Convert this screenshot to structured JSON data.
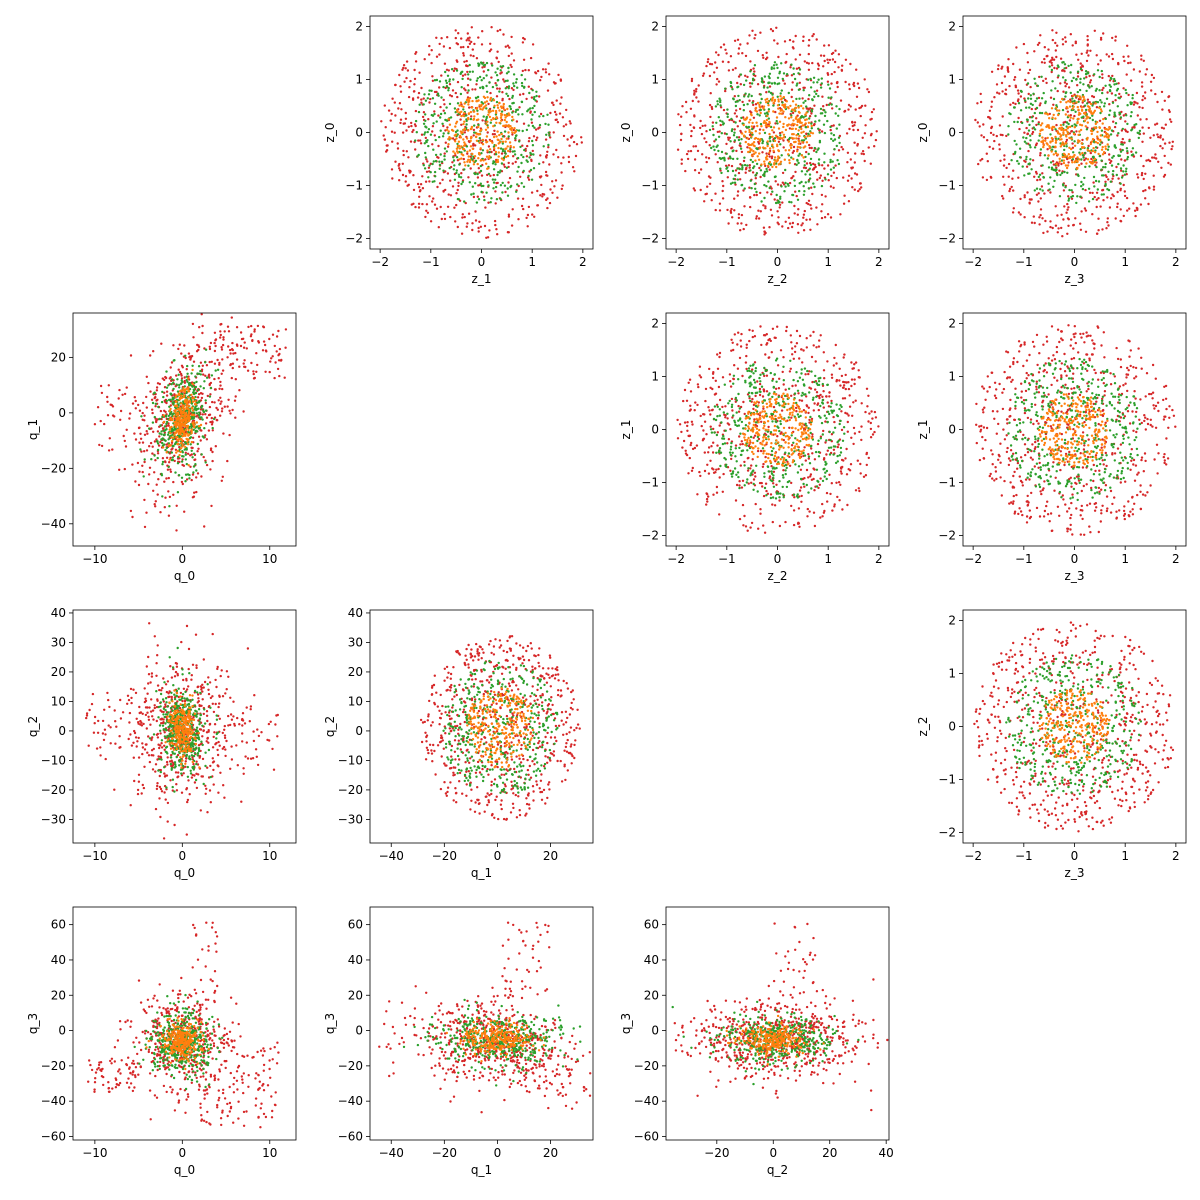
{
  "chart_data": {
    "type": "scatter",
    "series": [
      {
        "name": "",
        "color": "#d62728"
      },
      {
        "name": "",
        "color": "#2ca02c"
      },
      {
        "name": "",
        "color": "#ff7f0e"
      }
    ],
    "panels": [
      {
        "row": 0,
        "col": 1,
        "xlabel": "z_1",
        "ylabel": "z_0",
        "xlim": [
          -2.2,
          2.2
        ],
        "ylim": [
          -2.2,
          2.2
        ],
        "xticks": [
          -2,
          -1,
          0,
          1,
          2
        ],
        "yticks": [
          -2,
          -1,
          0,
          1,
          2
        ],
        "kind": "z",
        "radii": [
          2,
          1.35,
          0.7
        ],
        "counts": [
          650,
          420,
          260
        ]
      },
      {
        "row": 0,
        "col": 2,
        "xlabel": "z_2",
        "ylabel": "z_0",
        "xlim": [
          -2.2,
          2.2
        ],
        "ylim": [
          -2.2,
          2.2
        ],
        "xticks": [
          -2,
          -1,
          0,
          1,
          2
        ],
        "yticks": [
          -2,
          -1,
          0,
          1,
          2
        ],
        "kind": "z",
        "radii": [
          2,
          1.35,
          0.7
        ],
        "counts": [
          650,
          420,
          260
        ]
      },
      {
        "row": 0,
        "col": 3,
        "xlabel": "z_3",
        "ylabel": "z_0",
        "xlim": [
          -2.2,
          2.2
        ],
        "ylim": [
          -2.2,
          2.2
        ],
        "xticks": [
          -2,
          -1,
          0,
          1,
          2
        ],
        "yticks": [
          -2,
          -1,
          0,
          1,
          2
        ],
        "kind": "z",
        "radii": [
          2,
          1.35,
          0.7
        ],
        "counts": [
          650,
          420,
          260
        ]
      },
      {
        "row": 1,
        "col": 0,
        "xlabel": "q_0",
        "ylabel": "q_1",
        "xlim": [
          -12.5,
          13
        ],
        "ylim": [
          -48,
          36
        ],
        "xticks": [
          -10,
          0,
          10
        ],
        "yticks": [
          -40,
          -20,
          0,
          20
        ],
        "kind": "q01",
        "counts": [
          650,
          420,
          260
        ]
      },
      {
        "row": 1,
        "col": 2,
        "xlabel": "z_2",
        "ylabel": "z_1",
        "xlim": [
          -2.2,
          2.2
        ],
        "ylim": [
          -2.2,
          2.2
        ],
        "xticks": [
          -2,
          -1,
          0,
          1,
          2
        ],
        "yticks": [
          -2,
          -1,
          0,
          1,
          2
        ],
        "kind": "z",
        "radii": [
          2,
          1.35,
          0.7
        ],
        "counts": [
          650,
          420,
          260
        ]
      },
      {
        "row": 1,
        "col": 3,
        "xlabel": "z_3",
        "ylabel": "z_1",
        "xlim": [
          -2.2,
          2.2
        ],
        "ylim": [
          -2.2,
          2.2
        ],
        "xticks": [
          -2,
          -1,
          0,
          1,
          2
        ],
        "yticks": [
          -2,
          -1,
          0,
          1,
          2
        ],
        "kind": "z",
        "radii": [
          2,
          1.35,
          0.7
        ],
        "counts": [
          650,
          420,
          260
        ]
      },
      {
        "row": 2,
        "col": 0,
        "xlabel": "q_0",
        "ylabel": "q_2",
        "xlim": [
          -12.5,
          13
        ],
        "ylim": [
          -38,
          41
        ],
        "xticks": [
          -10,
          0,
          10
        ],
        "yticks": [
          -30,
          -20,
          -10,
          0,
          10,
          20,
          30,
          40
        ],
        "kind": "q02",
        "counts": [
          650,
          420,
          260
        ]
      },
      {
        "row": 2,
        "col": 1,
        "xlabel": "q_1",
        "ylabel": "q_2",
        "xlim": [
          -48,
          36
        ],
        "ylim": [
          -38,
          41
        ],
        "xticks": [
          -40,
          -20,
          0,
          20
        ],
        "yticks": [
          -30,
          -20,
          -10,
          0,
          10,
          20,
          30,
          40
        ],
        "kind": "q12",
        "counts": [
          650,
          420,
          260
        ]
      },
      {
        "row": 2,
        "col": 3,
        "xlabel": "z_3",
        "ylabel": "z_2",
        "xlim": [
          -2.2,
          2.2
        ],
        "ylim": [
          -2.2,
          2.2
        ],
        "xticks": [
          -2,
          -1,
          0,
          1,
          2
        ],
        "yticks": [
          -2,
          -1,
          0,
          1,
          2
        ],
        "kind": "z",
        "radii": [
          2,
          1.35,
          0.7
        ],
        "counts": [
          650,
          420,
          260
        ]
      },
      {
        "row": 3,
        "col": 0,
        "xlabel": "q_0",
        "ylabel": "q_3",
        "xlim": [
          -12.5,
          13
        ],
        "ylim": [
          -62,
          70
        ],
        "xticks": [
          -10,
          0,
          10
        ],
        "yticks": [
          -60,
          -40,
          -20,
          0,
          20,
          40,
          60
        ],
        "kind": "q03",
        "counts": [
          650,
          420,
          260
        ]
      },
      {
        "row": 3,
        "col": 1,
        "xlabel": "q_1",
        "ylabel": "q_3",
        "xlim": [
          -48,
          36
        ],
        "ylim": [
          -62,
          70
        ],
        "xticks": [
          -40,
          -20,
          0,
          20
        ],
        "yticks": [
          -60,
          -40,
          -20,
          0,
          20,
          40,
          60
        ],
        "kind": "q13",
        "counts": [
          650,
          420,
          260
        ]
      },
      {
        "row": 3,
        "col": 2,
        "xlabel": "q_2",
        "ylabel": "q_3",
        "xlim": [
          -38,
          41
        ],
        "ylim": [
          -62,
          70
        ],
        "xticks": [
          -20,
          0,
          20,
          40
        ],
        "yticks": [
          -60,
          -40,
          -20,
          0,
          20,
          40,
          60
        ],
        "kind": "q23",
        "counts": [
          650,
          420,
          260
        ]
      }
    ]
  }
}
